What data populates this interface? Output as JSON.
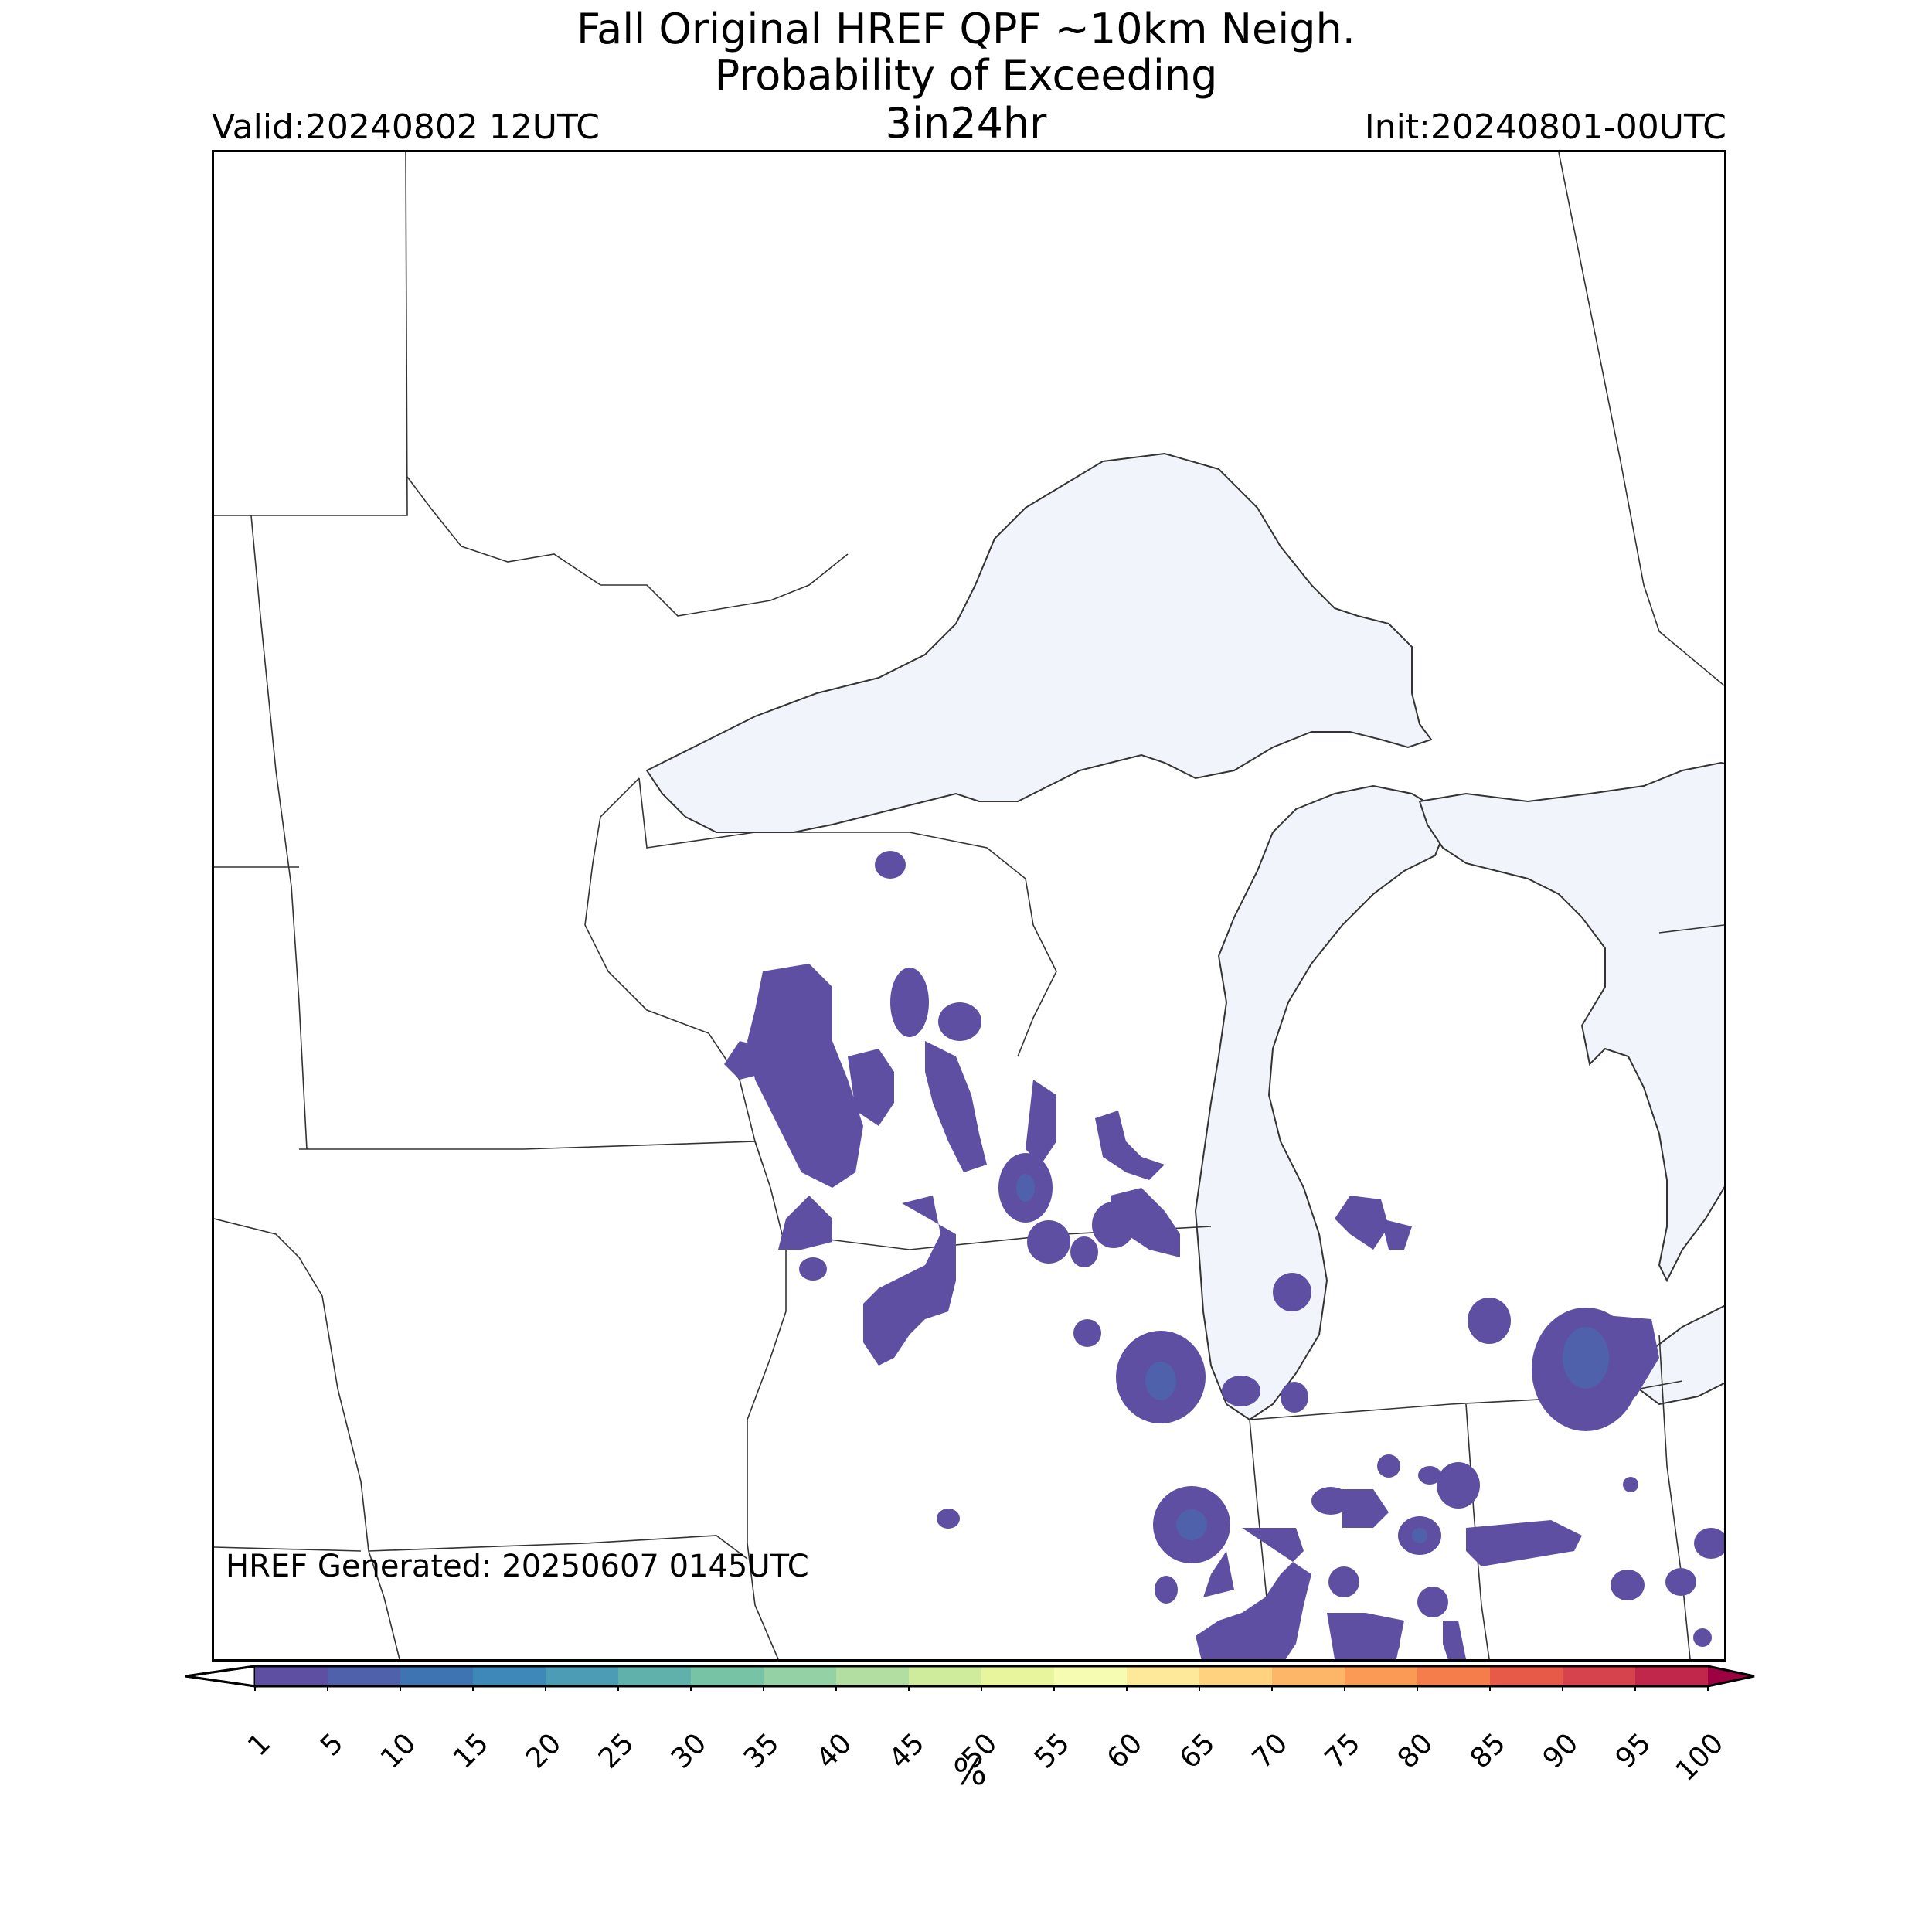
{
  "title": {
    "line1": "Fall Original HREF QPF ~10km Neigh.",
    "line2": "Probability of Exceeding",
    "line3": "3in24hr"
  },
  "valid_label": "Valid:20240802 12UTC",
  "init_label": "Init:20240801-00UTC",
  "generated_label": "HREF Generated: 20250607 0145UTC",
  "colorbar": {
    "label": "%",
    "ticks": [
      "1",
      "5",
      "10",
      "15",
      "20",
      "25",
      "30",
      "35",
      "40",
      "45",
      "50",
      "55",
      "60",
      "65",
      "70",
      "75",
      "80",
      "85",
      "90",
      "95",
      "100"
    ],
    "colors": [
      "#5e4fa2",
      "#4f61aa",
      "#3f74b2",
      "#3d88b8",
      "#4b9cb4",
      "#60b0ab",
      "#76c4a5",
      "#94d1a4",
      "#b3dea1",
      "#cfec9d",
      "#e9f59c",
      "#f7fcb3",
      "#fee99a",
      "#fed27f",
      "#fdb667",
      "#fa9a55",
      "#f47d4b",
      "#e65a47",
      "#d7434d",
      "#c1274a",
      "#9e0142"
    ],
    "under_color": "#ffffff",
    "over_color": "#9e0142"
  },
  "map": {
    "water_color": "#f1f5fb",
    "lake_color": "#f1f5fb",
    "probability_color": "#5e4fa2",
    "probability_color_high": "#4f61aa"
  }
}
